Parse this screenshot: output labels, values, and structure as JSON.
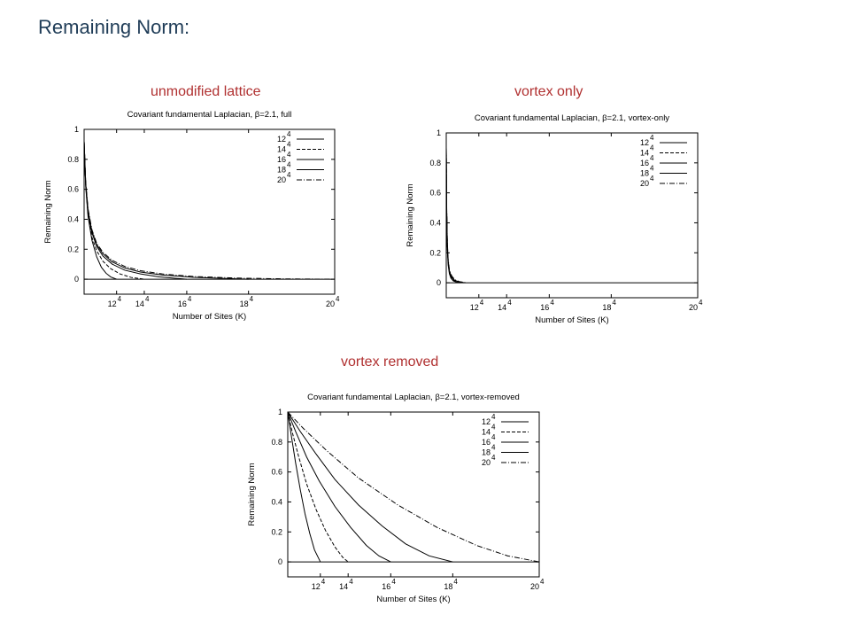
{
  "slide": {
    "title": "Remaining Norm:"
  },
  "panels": [
    {
      "label": "unmodified lattice"
    },
    {
      "label": "vortex only"
    },
    {
      "label": "vortex removed"
    }
  ],
  "chart_data": [
    {
      "type": "line",
      "title": "Covariant fundamental Laplacian, β=2.1, full",
      "xlabel": "Number of Sites (K)",
      "ylabel": "Remaining Norm",
      "x_ticks": [
        {
          "base": "12",
          "exp": "4",
          "value": 20736
        },
        {
          "base": "14",
          "exp": "4",
          "value": 38416
        },
        {
          "base": "16",
          "exp": "4",
          "value": 65536
        },
        {
          "base": "18",
          "exp": "4",
          "value": 104976
        },
        {
          "base": "20",
          "exp": "4",
          "value": 160000
        }
      ],
      "y_ticks": [
        "0",
        "0.2",
        "0.4",
        "0.6",
        "0.8",
        "1"
      ],
      "xlim": [
        0,
        160000
      ],
      "ylim": [
        -0.1,
        1
      ],
      "legend_position": "top-right",
      "series": [
        {
          "name": "12",
          "name_exp": "4",
          "dash": "",
          "x": [
            0,
            1000,
            2500,
            5000,
            8000,
            11000,
            14000,
            17000,
            20736
          ],
          "y": [
            0.92,
            0.62,
            0.42,
            0.26,
            0.15,
            0.08,
            0.04,
            0.015,
            0.0
          ]
        },
        {
          "name": "14",
          "name_exp": "4",
          "dash": "4,2",
          "x": [
            0,
            1000,
            2500,
            5000,
            8000,
            12000,
            17000,
            23000,
            30000,
            38416
          ],
          "y": [
            0.92,
            0.63,
            0.43,
            0.28,
            0.19,
            0.12,
            0.07,
            0.035,
            0.012,
            0.0
          ]
        },
        {
          "name": "16",
          "name_exp": "4",
          "dash": "",
          "x": [
            0,
            1000,
            2500,
            5000,
            8000,
            12000,
            18000,
            26000,
            36000,
            48000,
            65536
          ],
          "y": [
            0.92,
            0.64,
            0.45,
            0.31,
            0.22,
            0.155,
            0.1,
            0.06,
            0.035,
            0.015,
            0.0
          ]
        },
        {
          "name": "18",
          "name_exp": "4",
          "dash": "",
          "x": [
            0,
            1000,
            2500,
            5000,
            8000,
            12000,
            18000,
            26000,
            36000,
            50000,
            70000,
            104976
          ],
          "y": [
            0.92,
            0.64,
            0.46,
            0.32,
            0.23,
            0.17,
            0.115,
            0.075,
            0.048,
            0.028,
            0.012,
            0.0
          ]
        },
        {
          "name": "20",
          "name_exp": "4",
          "dash": "6,2,1,2",
          "x": [
            0,
            1000,
            2500,
            5000,
            8000,
            12000,
            18000,
            26000,
            36000,
            50000,
            70000,
            100000,
            130000,
            160000
          ],
          "y": [
            0.92,
            0.65,
            0.47,
            0.33,
            0.24,
            0.18,
            0.125,
            0.085,
            0.057,
            0.035,
            0.018,
            0.007,
            0.002,
            0.0
          ]
        }
      ]
    },
    {
      "type": "line",
      "title": "Covariant fundamental Laplacian, β=2.1, vortex-only",
      "xlabel": "Number of Sites (K)",
      "ylabel": "Remaining Norm",
      "x_ticks": [
        {
          "base": "12",
          "exp": "4",
          "value": 20736
        },
        {
          "base": "14",
          "exp": "4",
          "value": 38416
        },
        {
          "base": "16",
          "exp": "4",
          "value": 65536
        },
        {
          "base": "18",
          "exp": "4",
          "value": 104976
        },
        {
          "base": "20",
          "exp": "4",
          "value": 160000
        }
      ],
      "y_ticks": [
        "0",
        "0.2",
        "0.4",
        "0.6",
        "0.8",
        "1"
      ],
      "xlim": [
        0,
        160000
      ],
      "ylim": [
        -0.1,
        1
      ],
      "legend_position": "top-right",
      "series": [
        {
          "name": "12",
          "name_exp": "4",
          "dash": "",
          "x": [
            0,
            300,
            700,
            1200,
            2000,
            3000,
            4500,
            6500,
            9000
          ],
          "y": [
            0.9,
            0.45,
            0.22,
            0.12,
            0.06,
            0.03,
            0.012,
            0.004,
            0.0
          ]
        },
        {
          "name": "14",
          "name_exp": "4",
          "dash": "4,2",
          "x": [
            0,
            300,
            700,
            1200,
            2000,
            3000,
            4500,
            7000,
            10000
          ],
          "y": [
            0.9,
            0.46,
            0.24,
            0.13,
            0.07,
            0.035,
            0.015,
            0.005,
            0.0
          ]
        },
        {
          "name": "16",
          "name_exp": "4",
          "dash": "",
          "x": [
            0,
            300,
            700,
            1200,
            2000,
            3000,
            5000,
            7500,
            11000
          ],
          "y": [
            0.9,
            0.47,
            0.25,
            0.14,
            0.075,
            0.04,
            0.017,
            0.006,
            0.0
          ]
        },
        {
          "name": "18",
          "name_exp": "4",
          "dash": "",
          "x": [
            0,
            300,
            700,
            1200,
            2000,
            3200,
            5200,
            8000,
            12000
          ],
          "y": [
            0.9,
            0.48,
            0.26,
            0.15,
            0.08,
            0.042,
            0.018,
            0.006,
            0.0
          ]
        },
        {
          "name": "20",
          "name_exp": "4",
          "dash": "6,2,1,2",
          "x": [
            0,
            300,
            700,
            1200,
            2000,
            3500,
            5500,
            8500,
            13000
          ],
          "y": [
            0.9,
            0.49,
            0.27,
            0.16,
            0.085,
            0.045,
            0.02,
            0.007,
            0.0
          ]
        }
      ]
    },
    {
      "type": "line",
      "title": "Covariant fundamental Laplacian, β=2.1, vortex-removed",
      "xlabel": "Number of Sites (K)",
      "ylabel": "Remaining Norm",
      "x_ticks": [
        {
          "base": "12",
          "exp": "4",
          "value": 20736
        },
        {
          "base": "14",
          "exp": "4",
          "value": 38416
        },
        {
          "base": "16",
          "exp": "4",
          "value": 65536
        },
        {
          "base": "18",
          "exp": "4",
          "value": 104976
        },
        {
          "base": "20",
          "exp": "4",
          "value": 160000
        }
      ],
      "y_ticks": [
        "0",
        "0.2",
        "0.4",
        "0.6",
        "0.8",
        "1"
      ],
      "xlim": [
        0,
        160000
      ],
      "ylim": [
        -0.1,
        1
      ],
      "legend_position": "top-right",
      "series": [
        {
          "name": "12",
          "name_exp": "4",
          "dash": "",
          "x": [
            0,
            2000,
            5000,
            8000,
            11000,
            14000,
            17000,
            20736
          ],
          "y": [
            1.0,
            0.86,
            0.66,
            0.48,
            0.32,
            0.19,
            0.08,
            0.0
          ]
        },
        {
          "name": "14",
          "name_exp": "4",
          "dash": "4,2",
          "x": [
            0,
            3000,
            7000,
            12000,
            18000,
            24000,
            30000,
            35000,
            38416
          ],
          "y": [
            1.0,
            0.86,
            0.7,
            0.52,
            0.35,
            0.21,
            0.1,
            0.03,
            0.0
          ]
        },
        {
          "name": "16",
          "name_exp": "4",
          "dash": "",
          "x": [
            0,
            5000,
            12000,
            20000,
            30000,
            40000,
            50000,
            58000,
            65536
          ],
          "y": [
            1.0,
            0.87,
            0.7,
            0.54,
            0.37,
            0.23,
            0.11,
            0.04,
            0.0
          ]
        },
        {
          "name": "18",
          "name_exp": "4",
          "dash": "",
          "x": [
            0,
            8000,
            18000,
            30000,
            45000,
            60000,
            75000,
            90000,
            104976
          ],
          "y": [
            1.0,
            0.87,
            0.72,
            0.55,
            0.38,
            0.24,
            0.12,
            0.04,
            0.0
          ]
        },
        {
          "name": "20",
          "name_exp": "4",
          "dash": "6,2,1,2",
          "x": [
            0,
            10000,
            25000,
            45000,
            70000,
            95000,
            120000,
            140000,
            160000
          ],
          "y": [
            1.0,
            0.89,
            0.74,
            0.56,
            0.38,
            0.23,
            0.11,
            0.04,
            0.0
          ]
        }
      ]
    }
  ]
}
